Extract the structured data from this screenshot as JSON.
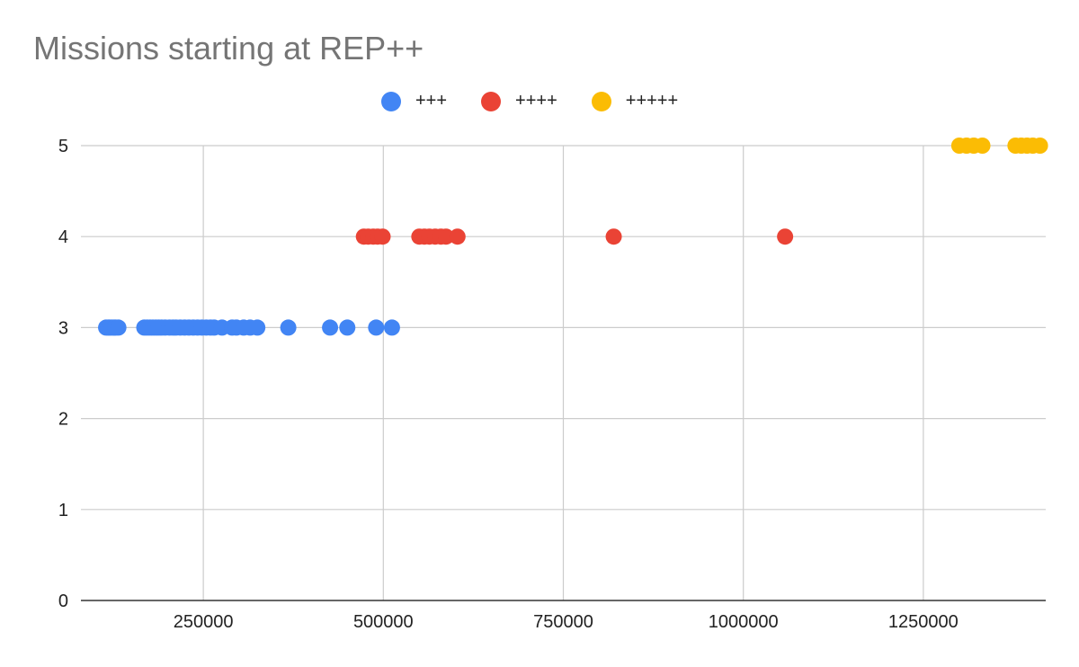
{
  "chart_data": {
    "type": "scatter",
    "title": "Missions starting at REP++",
    "xlabel": "",
    "ylabel": "",
    "xlim": [
      80000,
      1420000
    ],
    "ylim": [
      0,
      5
    ],
    "xticks": [
      250000,
      500000,
      750000,
      1000000,
      1250000
    ],
    "yticks": [
      0,
      1,
      2,
      3,
      4,
      5
    ],
    "grid": true,
    "legend_position": "top",
    "series": [
      {
        "name": "+++",
        "color": "#4285f4",
        "x": [
          115000,
          118000,
          120000,
          123000,
          126000,
          128000,
          132000,
          168000,
          172000,
          176000,
          180000,
          184000,
          188000,
          192000,
          197000,
          203000,
          208000,
          212000,
          218000,
          224000,
          230000,
          236000,
          242000,
          248000,
          254000,
          260000,
          265000,
          276000,
          290000,
          296000,
          306000,
          315000,
          325000,
          368000,
          426000,
          450000,
          490000,
          512000
        ],
        "y": [
          3,
          3,
          3,
          3,
          3,
          3,
          3,
          3,
          3,
          3,
          3,
          3,
          3,
          3,
          3,
          3,
          3,
          3,
          3,
          3,
          3,
          3,
          3,
          3,
          3,
          3,
          3,
          3,
          3,
          3,
          3,
          3,
          3,
          3,
          3,
          3,
          3,
          3
        ]
      },
      {
        "name": "++++",
        "color": "#ea4335",
        "x": [
          473000,
          479000,
          486000,
          492000,
          499000,
          550000,
          557000,
          564000,
          572000,
          580000,
          587000,
          603000,
          820000,
          1058000
        ],
        "y": [
          4,
          4,
          4,
          4,
          4,
          4,
          4,
          4,
          4,
          4,
          4,
          4,
          4,
          4
        ]
      },
      {
        "name": "+++++",
        "color": "#fbbc04",
        "x": [
          1300000,
          1310000,
          1320000,
          1332000,
          1378000,
          1386000,
          1394000,
          1402000,
          1412000
        ],
        "y": [
          5,
          5,
          5,
          5,
          5,
          5,
          5,
          5,
          5
        ]
      }
    ]
  }
}
